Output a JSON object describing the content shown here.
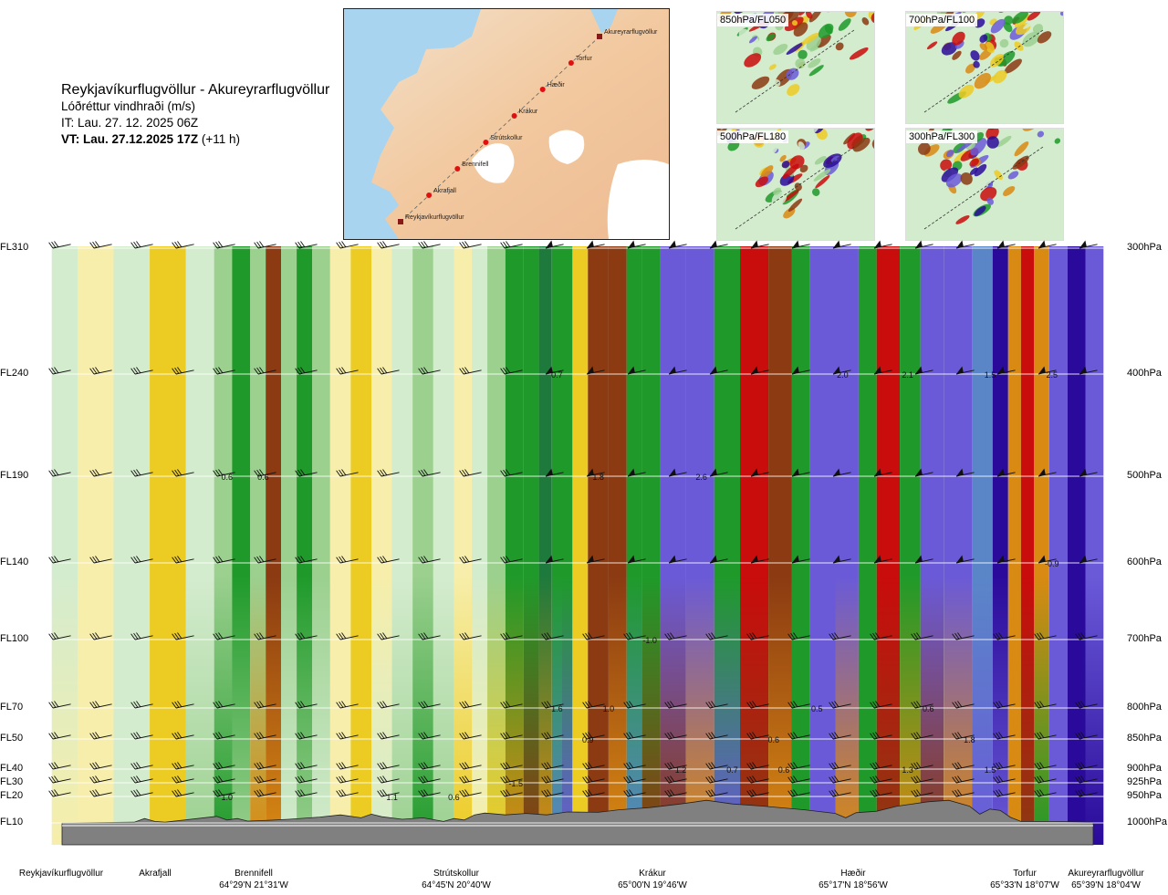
{
  "header": {
    "route": "Reykjavíkurflugvöllur - Akureyrarflugvöllur",
    "parameter": "Lóðréttur vindhraði (m/s)",
    "it_line": "IT: Lau. 27. 12. 2025 06Z",
    "vt_bold": "VT: Lau. 27.12.2025 17Z",
    "vt_offset": "(+11 h)"
  },
  "map": {
    "waypoints": [
      {
        "name": "Akureyrarflugvöllur",
        "kind": "airport"
      },
      {
        "name": "Torfur",
        "kind": "point"
      },
      {
        "name": "Hæðir",
        "kind": "point"
      },
      {
        "name": "Krákur",
        "kind": "point"
      },
      {
        "name": "Strútskollur",
        "kind": "point"
      },
      {
        "name": "Brennifell",
        "kind": "point"
      },
      {
        "name": "Akrafjall",
        "kind": "point"
      },
      {
        "name": "Reykjavíkurflugvöllur",
        "kind": "airport"
      }
    ]
  },
  "thumbnails": [
    {
      "label": "850hPa/FL050"
    },
    {
      "label": "700hPa/FL100"
    },
    {
      "label": "500hPa/FL180"
    },
    {
      "label": "300hPa/FL300"
    }
  ],
  "levels": [
    {
      "fl": "FL310",
      "hpa": "300hPa"
    },
    {
      "fl": "FL240",
      "hpa": "400hPa"
    },
    {
      "fl": "FL190",
      "hpa": "500hPa"
    },
    {
      "fl": "FL140",
      "hpa": "600hPa"
    },
    {
      "fl": "FL100",
      "hpa": "700hPa"
    },
    {
      "fl": "FL70",
      "hpa": "800hPa"
    },
    {
      "fl": "FL50",
      "hpa": "850hPa"
    },
    {
      "fl": "FL40",
      "hpa": "900hPa"
    },
    {
      "fl": "FL30",
      "hpa": "925hPa"
    },
    {
      "fl": "FL20",
      "hpa": "950hPa"
    },
    {
      "fl": "FL10",
      "hpa": "1000hPa"
    }
  ],
  "locations": [
    {
      "name": "Reykjavíkurflugvöllur",
      "coord": ""
    },
    {
      "name": "Akrafjall",
      "coord": ""
    },
    {
      "name": "Brennifell",
      "coord": "64°29'N 21°31'W"
    },
    {
      "name": "Strútskollur",
      "coord": "64°45'N 20°40'W"
    },
    {
      "name": "Krákur",
      "coord": "65°00'N 19°46'W"
    },
    {
      "name": "Hæðir",
      "coord": "65°17'N 18°56'W"
    },
    {
      "name": "Torfur",
      "coord": "65°33'N 18°07'W"
    },
    {
      "name": "Akureyrarflugvöllur",
      "coord": "65°39'N 18°04'W"
    }
  ],
  "chart_data": {
    "type": "heatmap",
    "title": "Lóðréttur vindhraði (m/s)",
    "y_axis_pressure_hpa": [
      300,
      400,
      500,
      600,
      700,
      800,
      850,
      900,
      925,
      950,
      1000
    ],
    "columns": [
      {
        "x": 0.0,
        "w": 1,
        "top": "palegreen",
        "bot": "lightyellow"
      },
      {
        "x": 0.03,
        "w": 1,
        "top": "lightyellow",
        "bot": "lightyellow"
      },
      {
        "x": 0.07,
        "w": 1,
        "top": "palegreen",
        "bot": "palegreen"
      },
      {
        "x": 0.1,
        "w": 1,
        "top": "yellow",
        "bot": "yellow"
      },
      {
        "x": 0.14,
        "w": 1,
        "top": "palegreen",
        "bot": "lightgreen"
      },
      {
        "x": 0.155,
        "w": 0.6,
        "top": "lightgreen",
        "bot": "green"
      },
      {
        "x": 0.175,
        "w": 0.6,
        "top": "green",
        "bot": "lightgreen"
      },
      {
        "x": 0.19,
        "w": 0.6,
        "top": "lightgreen",
        "bot": "orange"
      },
      {
        "x": 0.205,
        "w": 0.6,
        "top": "brown",
        "bot": "orange"
      },
      {
        "x": 0.22,
        "w": 0.6,
        "top": "lightgreen",
        "bot": "palegreen"
      },
      {
        "x": 0.235,
        "w": 0.6,
        "top": "green",
        "bot": "lightgreen"
      },
      {
        "x": 0.25,
        "w": 0.8,
        "top": "lightgreen",
        "bot": "palegreen"
      },
      {
        "x": 0.27,
        "w": 1,
        "top": "lightyellow",
        "bot": "lightyellow"
      },
      {
        "x": 0.29,
        "w": 1,
        "top": "yellow",
        "bot": "yellow"
      },
      {
        "x": 0.31,
        "w": 1,
        "top": "lightyellow",
        "bot": "palegreen"
      },
      {
        "x": 0.33,
        "w": 0.8,
        "top": "palegreen",
        "bot": "lightgreen"
      },
      {
        "x": 0.35,
        "w": 0.8,
        "top": "lightgreen",
        "bot": "green"
      },
      {
        "x": 0.37,
        "w": 0.8,
        "top": "palegreen",
        "bot": "lightgreen"
      },
      {
        "x": 0.39,
        "w": 1,
        "top": "lightyellow",
        "bot": "yellow"
      },
      {
        "x": 0.405,
        "w": 1,
        "top": "palegreen",
        "bot": "lightyellow"
      },
      {
        "x": 0.42,
        "w": 1,
        "top": "lightgreen",
        "bot": "yellow"
      },
      {
        "x": 0.44,
        "w": 1,
        "top": "green",
        "bot": "orange"
      },
      {
        "x": 0.455,
        "w": 1,
        "top": "green",
        "bot": "brown"
      },
      {
        "x": 0.47,
        "w": 1,
        "top": "darkgreen",
        "bot": "orange"
      },
      {
        "x": 0.48,
        "w": 0.6,
        "top": "green",
        "bot": "slate"
      },
      {
        "x": 0.49,
        "w": 0.5,
        "top": "green",
        "bot": "blue"
      },
      {
        "x": 0.5,
        "w": 0.6,
        "top": "yellow",
        "bot": "yellow"
      },
      {
        "x": 0.52,
        "w": 1,
        "top": "brown",
        "bot": "brown"
      },
      {
        "x": 0.54,
        "w": 1,
        "top": "brown",
        "bot": "orange"
      },
      {
        "x": 0.555,
        "w": 0.6,
        "top": "green",
        "bot": "slate"
      },
      {
        "x": 0.57,
        "w": 0.6,
        "top": "green",
        "bot": "brown"
      },
      {
        "x": 0.59,
        "w": 1,
        "top": "blue",
        "bot": "brown"
      },
      {
        "x": 0.62,
        "w": 1,
        "top": "blue",
        "bot": "orange"
      },
      {
        "x": 0.645,
        "w": 0.6,
        "top": "green",
        "bot": "blue"
      },
      {
        "x": 0.67,
        "w": 1,
        "top": "red",
        "bot": "brown"
      },
      {
        "x": 0.7,
        "w": 1,
        "top": "brown",
        "bot": "orange"
      },
      {
        "x": 0.715,
        "w": 0.6,
        "top": "green",
        "bot": "green"
      },
      {
        "x": 0.735,
        "w": 1,
        "top": "blue",
        "bot": "blue"
      },
      {
        "x": 0.765,
        "w": 1,
        "top": "blue",
        "bot": "orange"
      },
      {
        "x": 0.78,
        "w": 0.6,
        "top": "green",
        "bot": "green"
      },
      {
        "x": 0.8,
        "w": 1,
        "top": "red",
        "bot": "brown"
      },
      {
        "x": 0.825,
        "w": 0.6,
        "top": "green",
        "bot": "orange"
      },
      {
        "x": 0.84,
        "w": 1,
        "top": "blue",
        "bot": "brown"
      },
      {
        "x": 0.87,
        "w": 1,
        "top": "blue",
        "bot": "orange"
      },
      {
        "x": 0.895,
        "w": 0.8,
        "top": "slate",
        "bot": "blue"
      },
      {
        "x": 0.91,
        "w": 0.8,
        "top": "navy",
        "bot": "blue"
      },
      {
        "x": 0.925,
        "w": 0.5,
        "top": "orange",
        "bot": "orange"
      },
      {
        "x": 0.935,
        "w": 0.8,
        "top": "red",
        "bot": "brown"
      },
      {
        "x": 0.95,
        "w": 0.5,
        "top": "orange",
        "bot": "green"
      },
      {
        "x": 0.965,
        "w": 1,
        "top": "blue",
        "bot": "blue"
      },
      {
        "x": 0.985,
        "w": 1,
        "top": "navy",
        "bot": "navy"
      },
      {
        "x": 1.0,
        "w": 1,
        "top": "blue",
        "bot": "navy"
      }
    ],
    "terrain": [
      [
        0,
        0
      ],
      [
        0.07,
        0.02
      ],
      [
        0.08,
        0.12
      ],
      [
        0.09,
        0.04
      ],
      [
        0.1,
        0.02
      ],
      [
        0.15,
        0.18
      ],
      [
        0.16,
        0.08
      ],
      [
        0.17,
        0.12
      ],
      [
        0.18,
        0.05
      ],
      [
        0.2,
        0.07
      ],
      [
        0.22,
        0.1
      ],
      [
        0.25,
        0.16
      ],
      [
        0.27,
        0.22
      ],
      [
        0.29,
        0.14
      ],
      [
        0.3,
        0.24
      ],
      [
        0.31,
        0.17
      ],
      [
        0.33,
        0.1
      ],
      [
        0.35,
        0.14
      ],
      [
        0.37,
        0.04
      ],
      [
        0.38,
        0.12
      ],
      [
        0.39,
        0.08
      ],
      [
        0.4,
        0.22
      ],
      [
        0.41,
        0.27
      ],
      [
        0.43,
        0.22
      ],
      [
        0.45,
        0.26
      ],
      [
        0.47,
        0.22
      ],
      [
        0.49,
        0.3
      ],
      [
        0.52,
        0.29
      ],
      [
        0.54,
        0.36
      ],
      [
        0.57,
        0.42
      ],
      [
        0.6,
        0.52
      ],
      [
        0.625,
        0.62
      ],
      [
        0.65,
        0.52
      ],
      [
        0.68,
        0.46
      ],
      [
        0.72,
        0.36
      ],
      [
        0.75,
        0.26
      ],
      [
        0.76,
        0.14
      ],
      [
        0.77,
        0.28
      ],
      [
        0.79,
        0.32
      ],
      [
        0.81,
        0.46
      ],
      [
        0.84,
        0.58
      ],
      [
        0.86,
        0.62
      ],
      [
        0.88,
        0.46
      ],
      [
        0.89,
        0.24
      ],
      [
        0.9,
        0.38
      ],
      [
        0.91,
        0.34
      ],
      [
        0.92,
        0.15
      ],
      [
        0.93,
        0.04
      ],
      [
        0.96,
        0.04
      ],
      [
        1.0,
        0.02
      ]
    ],
    "value_labels": [
      {
        "text": "0.6",
        "x": 0.16,
        "p": 500
      },
      {
        "text": "0.6",
        "x": 0.195,
        "p": 500
      },
      {
        "text": "0.7",
        "x": 0.48,
        "p": 400
      },
      {
        "text": "1.8",
        "x": 0.52,
        "p": 500
      },
      {
        "text": "2.6",
        "x": 0.62,
        "p": 500
      },
      {
        "text": "2.0",
        "x": 0.757,
        "p": 400
      },
      {
        "text": "2.1",
        "x": 0.82,
        "p": 400
      },
      {
        "text": "1.5",
        "x": 0.9,
        "p": 400
      },
      {
        "text": "2.5",
        "x": 0.96,
        "p": 400
      },
      {
        "text": "-1.0",
        "x": 0.57,
        "p": 700
      },
      {
        "text": "-0.9",
        "x": 0.96,
        "p": 600
      },
      {
        "text": "1.6",
        "x": 0.48,
        "p": 800
      },
      {
        "text": "1.0",
        "x": 0.53,
        "p": 800
      },
      {
        "text": "0.9",
        "x": 0.51,
        "p": 850
      },
      {
        "text": "0.5",
        "x": 0.732,
        "p": 800
      },
      {
        "text": "0.6",
        "x": 0.84,
        "p": 800
      },
      {
        "text": "0.6",
        "x": 0.69,
        "p": 850
      },
      {
        "text": "1.8",
        "x": 0.88,
        "p": 850
      },
      {
        "text": "1.2",
        "x": 0.6,
        "p": 900
      },
      {
        "text": "0.7",
        "x": 0.65,
        "p": 900
      },
      {
        "text": "0.6",
        "x": 0.7,
        "p": 900
      },
      {
        "text": "1.3",
        "x": 0.82,
        "p": 900
      },
      {
        "text": "1.5",
        "x": 0.9,
        "p": 900
      },
      {
        "text": "-1.5",
        "x": 0.44,
        "p": 925
      },
      {
        "text": "1.0",
        "x": 0.16,
        "p": 950
      },
      {
        "text": "1.1",
        "x": 0.32,
        "p": 950
      },
      {
        "text": "0.6",
        "x": 0.38,
        "p": 950
      }
    ]
  },
  "palette": {
    "navy": "#2a0a9a",
    "blue": "#6a5ad8",
    "slate": "#5a86c8",
    "darkgreen": "#1d7a3c",
    "green": "#1f9a2a",
    "lightgreen": "#9bd08f",
    "palegreen": "#d4ecce",
    "lightyellow": "#f6eeaa",
    "yellow": "#eccb22",
    "orange": "#d98a12",
    "brown": "#8b3a12",
    "red": "#c90c0c",
    "terrain": "#808080"
  }
}
